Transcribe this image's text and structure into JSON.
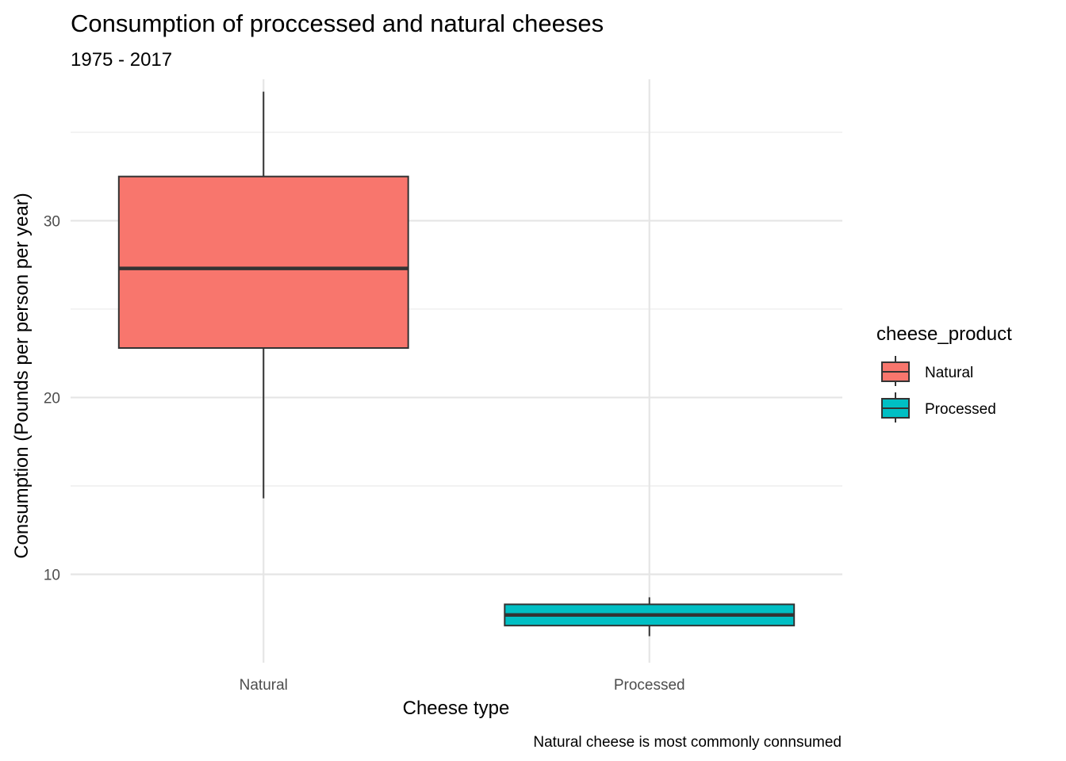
{
  "chart_data": {
    "type": "box",
    "title": "Consumption of proccessed and natural cheeses",
    "subtitle": "1975 - 2017",
    "caption": "Natural cheese is most commonly connsumed",
    "xlabel": "Cheese type",
    "ylabel": "Consumption (Pounds per person per year)",
    "categories": [
      "Natural",
      "Processed"
    ],
    "ylim": [
      5,
      38
    ],
    "yticks": [
      10,
      20,
      30
    ],
    "yticks_minor": [
      15,
      25,
      35
    ],
    "grid": true,
    "legend": {
      "title": "cheese_product",
      "position": "right",
      "entries": [
        "Natural",
        "Processed"
      ]
    },
    "series": [
      {
        "category": "Natural",
        "min": 14.3,
        "q1": 22.8,
        "median": 27.3,
        "q3": 32.5,
        "max": 37.3,
        "color": "#F8766D"
      },
      {
        "category": "Processed",
        "min": 6.5,
        "q1": 7.1,
        "median": 7.7,
        "q3": 8.3,
        "max": 8.7,
        "color": "#00BFC4"
      }
    ]
  }
}
